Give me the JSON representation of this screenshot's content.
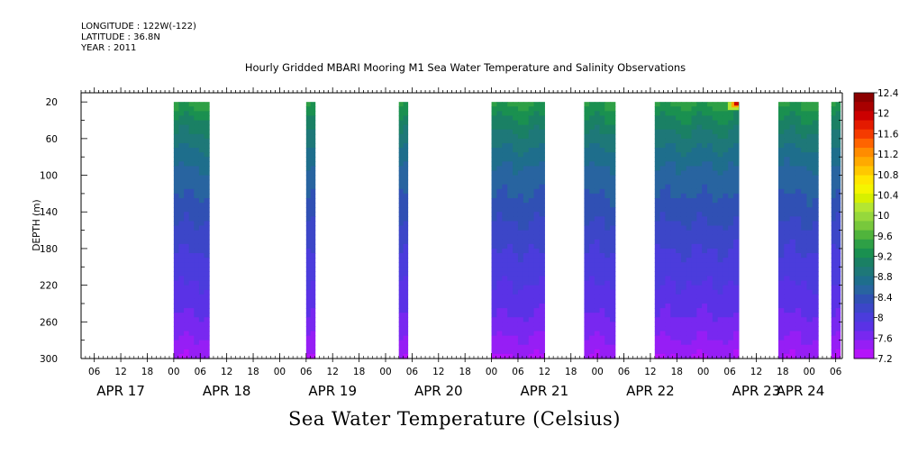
{
  "header": {
    "longitude": "LONGITUDE : 122W(-122)",
    "latitude": "LATITUDE : 36.8N",
    "year": "YEAR : 2011"
  },
  "chart_data": {
    "type": "heatmap",
    "title": "Hourly Gridded MBARI Mooring M1 Sea Water Temperature and Salinity Observations",
    "footer_title": "Sea Water Temperature (Celsius)",
    "ylabel": "DEPTH (m)",
    "ylim": [
      300,
      10
    ],
    "y_ticks": [
      20,
      60,
      100,
      140,
      180,
      220,
      260,
      300
    ],
    "x_start": "APR 17 03:00",
    "x_tick_hours": [
      "06",
      "12",
      "18",
      "00",
      "06",
      "12",
      "18",
      "00",
      "06",
      "12",
      "18",
      "00",
      "06",
      "12",
      "18",
      "00",
      "06",
      "12",
      "18",
      "00",
      "06",
      "12",
      "18",
      "00",
      "06",
      "12",
      "18",
      "00",
      "06"
    ],
    "x_day_labels": [
      {
        "label": "APR 17",
        "day": "APR 17"
      },
      {
        "label": "APR 18",
        "day": "APR 18"
      },
      {
        "label": "APR 19",
        "day": "APR 19"
      },
      {
        "label": "APR 20",
        "day": "APR 20"
      },
      {
        "label": "APR 21",
        "day": "APR 21"
      },
      {
        "label": "APR 22",
        "day": "APR 22"
      },
      {
        "label": "APR 23",
        "day": "APR 23"
      },
      {
        "label": "APR 24",
        "day": "APR 24"
      }
    ],
    "data_blocks": [
      {
        "start": "APR 18 00:00",
        "end": "APR 18 08:00",
        "depth_top": 20,
        "depth_bottom": 300
      },
      {
        "start": "APR 19 06:00",
        "end": "APR 19 08:00",
        "depth_top": 20,
        "depth_bottom": 300
      },
      {
        "start": "APR 20 03:00",
        "end": "APR 20 05:00",
        "depth_top": 20,
        "depth_bottom": 300
      },
      {
        "start": "APR 21 00:00",
        "end": "APR 21 12:00",
        "depth_top": 20,
        "depth_bottom": 300
      },
      {
        "start": "APR 21 21:00",
        "end": "APR 22 04:00",
        "depth_top": 20,
        "depth_bottom": 300
      },
      {
        "start": "APR 22 13:00",
        "end": "APR 23 08:00",
        "depth_top": 20,
        "depth_bottom": 300
      },
      {
        "start": "APR 23 17:00",
        "end": "APR 24 02:00",
        "depth_top": 20,
        "depth_bottom": 300
      },
      {
        "start": "APR 24 05:00",
        "end": "APR 24 07:00",
        "depth_top": 20,
        "depth_bottom": 300
      }
    ],
    "temperature_profile": [
      {
        "depth": 20,
        "temp": 9.4
      },
      {
        "depth": 40,
        "temp": 9.1
      },
      {
        "depth": 60,
        "temp": 8.9
      },
      {
        "depth": 80,
        "temp": 8.7
      },
      {
        "depth": 100,
        "temp": 8.55
      },
      {
        "depth": 130,
        "temp": 8.4
      },
      {
        "depth": 160,
        "temp": 8.2
      },
      {
        "depth": 200,
        "temp": 8.0
      },
      {
        "depth": 240,
        "temp": 7.8
      },
      {
        "depth": 270,
        "temp": 7.6
      },
      {
        "depth": 300,
        "temp": 7.35
      }
    ],
    "hotspot": {
      "time": "APR 23 08:00",
      "depth": 20,
      "temp": 12.0
    },
    "colorbar": {
      "min": 7.2,
      "max": 12.4,
      "labels": [
        "12.4",
        "12",
        "11.6",
        "11.2",
        "10.8",
        "10.4",
        "10",
        "9.6",
        "9.2",
        "8.8",
        "8.4",
        "8",
        "7.6",
        "7.2"
      ],
      "colors": [
        "#8b0000",
        "#a80000",
        "#cc0000",
        "#e41a00",
        "#f53b00",
        "#ff6400",
        "#ff8c00",
        "#ffaa00",
        "#ffc800",
        "#ffe600",
        "#f5f500",
        "#d7f000",
        "#b4e632",
        "#96d83c",
        "#78c83c",
        "#50b43c",
        "#2ea046",
        "#1a9050",
        "#1a8064",
        "#1e7878",
        "#1e6e8c",
        "#2864a0",
        "#3050b4",
        "#3c46c8",
        "#4b3cdc",
        "#5a32e6",
        "#7828f0",
        "#961ef5",
        "#b414fa"
      ]
    }
  }
}
